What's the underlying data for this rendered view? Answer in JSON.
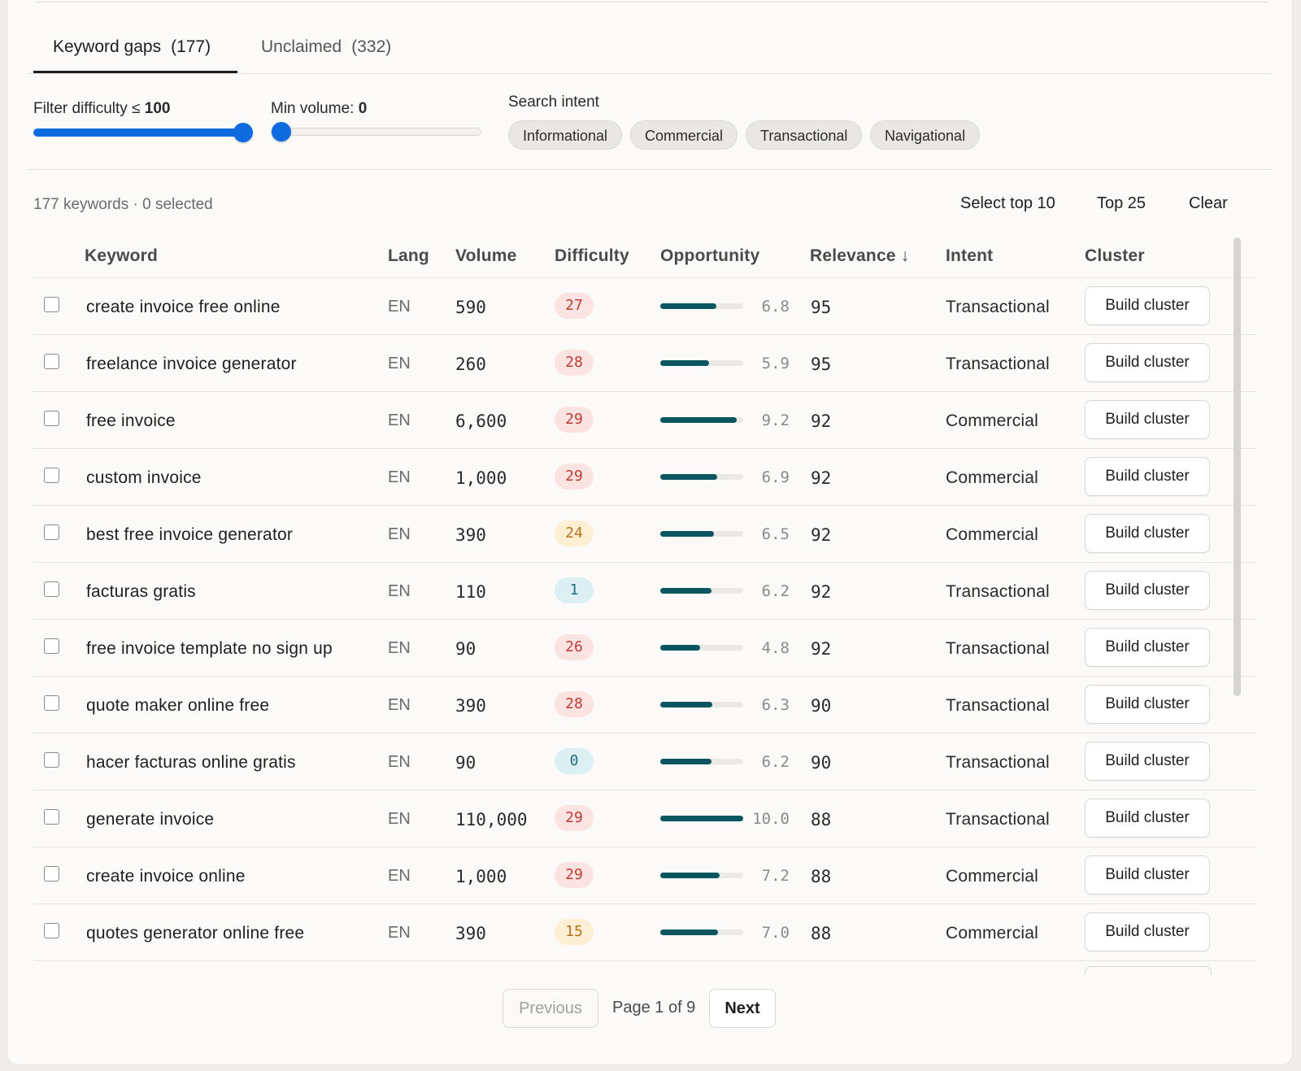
{
  "tabs": [
    {
      "label": "Keyword gaps",
      "count": "(177)"
    },
    {
      "label": "Unclaimed",
      "count": "(332)"
    }
  ],
  "filters": {
    "difficulty_label": "Filter difficulty ≤ ",
    "difficulty_value": "100",
    "difficulty_fraction": 1.0,
    "volume_label": "Min volume: ",
    "volume_value": "0",
    "volume_fraction": 0.0,
    "intent_label": "Search intent",
    "intent_options": [
      "Informational",
      "Commercial",
      "Transactional",
      "Navigational"
    ]
  },
  "summary": "177 keywords · 0 selected",
  "actions": {
    "select_top10": "Select top 10",
    "top25": "Top 25",
    "clear": "Clear"
  },
  "columns": {
    "keyword": "Keyword",
    "lang": "Lang",
    "volume": "Volume",
    "difficulty": "Difficulty",
    "opportunity": "Opportunity",
    "relevance": "Relevance ↓",
    "intent": "Intent",
    "cluster": "Cluster"
  },
  "rows": [
    {
      "keyword": "create invoice free online",
      "lang": "EN",
      "volume": "590",
      "difficulty": "27",
      "difficulty_level": "hard",
      "opportunity": "6.8",
      "relevance": "95",
      "intent": "Transactional",
      "cluster": "Build cluster"
    },
    {
      "keyword": "freelance invoice generator",
      "lang": "EN",
      "volume": "260",
      "difficulty": "28",
      "difficulty_level": "hard",
      "opportunity": "5.9",
      "relevance": "95",
      "intent": "Transactional",
      "cluster": "Build cluster"
    },
    {
      "keyword": "free invoice",
      "lang": "EN",
      "volume": "6,600",
      "difficulty": "29",
      "difficulty_level": "hard",
      "opportunity": "9.2",
      "relevance": "92",
      "intent": "Commercial",
      "cluster": "Build cluster"
    },
    {
      "keyword": "custom invoice",
      "lang": "EN",
      "volume": "1,000",
      "difficulty": "29",
      "difficulty_level": "hard",
      "opportunity": "6.9",
      "relevance": "92",
      "intent": "Commercial",
      "cluster": "Build cluster"
    },
    {
      "keyword": "best free invoice generator",
      "lang": "EN",
      "volume": "390",
      "difficulty": "24",
      "difficulty_level": "medium",
      "opportunity": "6.5",
      "relevance": "92",
      "intent": "Commercial",
      "cluster": "Build cluster"
    },
    {
      "keyword": "facturas gratis",
      "lang": "EN",
      "volume": "110",
      "difficulty": "1",
      "difficulty_level": "easy",
      "opportunity": "6.2",
      "relevance": "92",
      "intent": "Transactional",
      "cluster": "Build cluster"
    },
    {
      "keyword": "free invoice template no sign up",
      "lang": "EN",
      "volume": "90",
      "difficulty": "26",
      "difficulty_level": "hard",
      "opportunity": "4.8",
      "relevance": "92",
      "intent": "Transactional",
      "cluster": "Build cluster"
    },
    {
      "keyword": "quote maker online free",
      "lang": "EN",
      "volume": "390",
      "difficulty": "28",
      "difficulty_level": "hard",
      "opportunity": "6.3",
      "relevance": "90",
      "intent": "Transactional",
      "cluster": "Build cluster"
    },
    {
      "keyword": "hacer facturas online gratis",
      "lang": "EN",
      "volume": "90",
      "difficulty": "0",
      "difficulty_level": "easy",
      "opportunity": "6.2",
      "relevance": "90",
      "intent": "Transactional",
      "cluster": "Build cluster"
    },
    {
      "keyword": "generate invoice",
      "lang": "EN",
      "volume": "110,000",
      "difficulty": "29",
      "difficulty_level": "hard",
      "opportunity": "10.0",
      "relevance": "88",
      "intent": "Transactional",
      "cluster": "Build cluster"
    },
    {
      "keyword": "create invoice online",
      "lang": "EN",
      "volume": "1,000",
      "difficulty": "29",
      "difficulty_level": "hard",
      "opportunity": "7.2",
      "relevance": "88",
      "intent": "Commercial",
      "cluster": "Build cluster"
    },
    {
      "keyword": "quotes generator online free",
      "lang": "EN",
      "volume": "390",
      "difficulty": "15",
      "difficulty_level": "medium",
      "opportunity": "7.0",
      "relevance": "88",
      "intent": "Commercial",
      "cluster": "Build cluster"
    }
  ],
  "difficulty_colors": {
    "hard": {
      "bg": "#fbe3e1",
      "fg": "#c23a33"
    },
    "medium": {
      "bg": "#fcefd4",
      "fg": "#b5741a"
    },
    "easy": {
      "bg": "#dcf0f4",
      "fg": "#1f6d7a"
    }
  },
  "accent_color": "#0f6ce0",
  "opportunity_color": "#0b5560",
  "pagination": {
    "previous": "Previous",
    "info": "Page 1 of 9",
    "next": "Next"
  }
}
